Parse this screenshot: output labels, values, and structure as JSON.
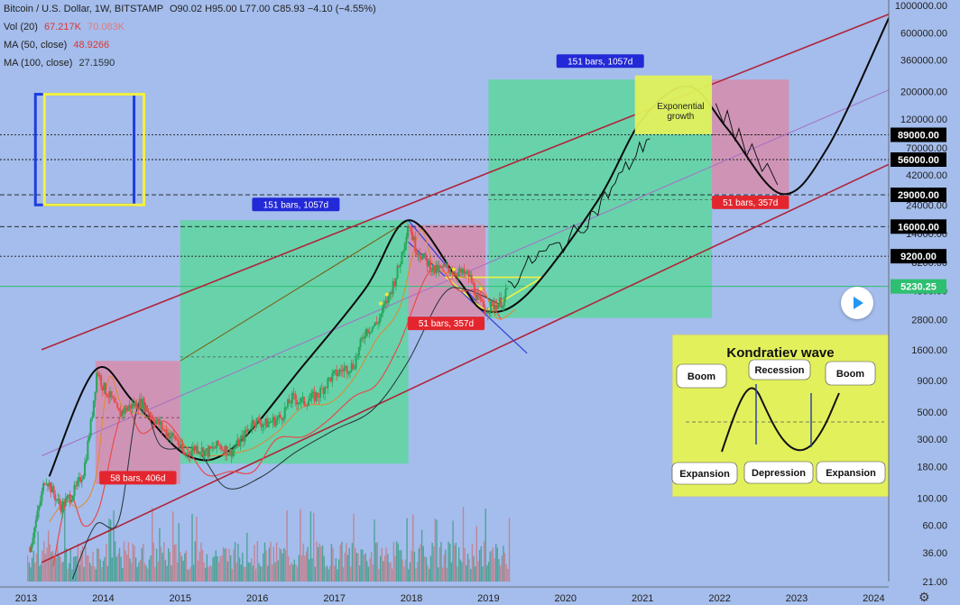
{
  "header": {
    "symbol": "Bitcoin / U.S. Dollar, 1W, BITSTAMP",
    "ohlc": "O90.02  H95.00  L77.00  C85.93  −4.10 (−4.55%)",
    "vol_label": "Vol (20)",
    "vol_value": "67.217K",
    "vol_value2": "70.083K",
    "ma50_label": "MA (50, close)",
    "ma50_value": "48.9266",
    "ma100_label": "MA (100, close)",
    "ma100_value": "27.1590"
  },
  "colors": {
    "background": "#a4bdec",
    "green_zone": "#5ed6a0",
    "red_zone": "#d98aa8",
    "candle_up": "#26a65b",
    "candle_down": "#e84b4b",
    "channel": "#b0243a",
    "label_blue": "#2229d6",
    "label_red": "#e3262e"
  },
  "chart_data": {
    "type": "candlestick",
    "title": "Bitcoin / U.S. Dollar, 1W, BITSTAMP",
    "y_scale": "log",
    "ylim": [
      21,
      1000000
    ],
    "xlim": [
      2013.0,
      2024.1
    ],
    "x_ticks": [
      "2013",
      "2014",
      "2015",
      "2016",
      "2017",
      "2018",
      "2019",
      "2020",
      "2021",
      "2022",
      "2023",
      "2024"
    ],
    "y_ticks": [
      "1000000.00",
      "600000.00",
      "360000.00",
      "200000.00",
      "120000.00",
      "70000.00",
      "42000.00",
      "24000.00",
      "14000.00",
      "8200.00",
      "4800.00",
      "2800.00",
      "1600.00",
      "900.00",
      "500.00",
      "300.00",
      "180.00",
      "100.00",
      "60.00",
      "36.00",
      "21.00"
    ],
    "price_levels": [
      {
        "value": 89000,
        "label": "89000.00",
        "style": "dotted"
      },
      {
        "value": 56000,
        "label": "56000.00",
        "style": "dotted"
      },
      {
        "value": 29000,
        "label": "29000.00",
        "style": "dashed"
      },
      {
        "value": 16000,
        "label": "16000.00",
        "style": "dashed"
      },
      {
        "value": 9200,
        "label": "9200.00",
        "style": "dotted"
      },
      {
        "value": 5230.25,
        "label": "5230.25",
        "style": "solid",
        "current": true
      }
    ],
    "price_path": [
      [
        2013.05,
        40
      ],
      [
        2013.15,
        75
      ],
      [
        2013.25,
        150
      ],
      [
        2013.35,
        110
      ],
      [
        2013.45,
        85
      ],
      [
        2013.55,
        100
      ],
      [
        2013.65,
        120
      ],
      [
        2013.75,
        170
      ],
      [
        2013.85,
        450
      ],
      [
        2013.92,
        1100
      ],
      [
        2014.0,
        800
      ],
      [
        2014.1,
        650
      ],
      [
        2014.2,
        480
      ],
      [
        2014.35,
        560
      ],
      [
        2014.5,
        600
      ],
      [
        2014.65,
        450
      ],
      [
        2014.8,
        350
      ],
      [
        2014.95,
        300
      ],
      [
        2015.05,
        220
      ],
      [
        2015.2,
        260
      ],
      [
        2015.35,
        235
      ],
      [
        2015.5,
        270
      ],
      [
        2015.65,
        235
      ],
      [
        2015.8,
        300
      ],
      [
        2015.95,
        430
      ],
      [
        2016.1,
        400
      ],
      [
        2016.3,
        450
      ],
      [
        2016.45,
        650
      ],
      [
        2016.6,
        600
      ],
      [
        2016.8,
        700
      ],
      [
        2016.95,
        950
      ],
      [
        2017.1,
        1100
      ],
      [
        2017.25,
        1200
      ],
      [
        2017.4,
        2300
      ],
      [
        2017.55,
        2600
      ],
      [
        2017.7,
        4200
      ],
      [
        2017.85,
        8000
      ],
      [
        2017.96,
        17500
      ],
      [
        2018.05,
        11000
      ],
      [
        2018.15,
        9000
      ],
      [
        2018.3,
        7000
      ],
      [
        2018.45,
        7500
      ],
      [
        2018.6,
        6800
      ],
      [
        2018.75,
        6400
      ],
      [
        2018.87,
        4000
      ],
      [
        2018.96,
        3400
      ],
      [
        2019.1,
        3800
      ],
      [
        2019.2,
        4000
      ],
      [
        2019.25,
        5230
      ]
    ],
    "volume_max_units": 340000,
    "moving_averages": [
      {
        "name": "MA (50, close)",
        "value": 48.9266,
        "color": "#e84b4b"
      },
      {
        "name": "MA (100, close)",
        "value": 27.159,
        "color": "#263238"
      }
    ],
    "zones": [
      {
        "kind": "green",
        "x": [
          2015.0,
          2017.96
        ],
        "y": [
          190,
          18000
        ]
      },
      {
        "kind": "green",
        "x": [
          2019.0,
          2021.9
        ],
        "y": [
          2900,
          250000
        ]
      },
      {
        "kind": "red",
        "x": [
          2013.9,
          2015.0
        ],
        "y": [
          130,
          1300
        ]
      },
      {
        "kind": "red",
        "x": [
          2017.96,
          2018.96
        ],
        "y": [
          3000,
          16500
        ]
      },
      {
        "kind": "red",
        "x": [
          2021.9,
          2022.9
        ],
        "y": [
          29500,
          250000
        ]
      }
    ],
    "range_labels": [
      {
        "text": "151 bars, 1057d",
        "x": 2016.5,
        "y": 24000,
        "color": "blue"
      },
      {
        "text": "151 bars, 1057d",
        "x": 2020.45,
        "y": 350000,
        "color": "blue"
      },
      {
        "text": "58 bars, 406d",
        "x": 2014.45,
        "y": 145,
        "color": "red"
      },
      {
        "text": "51 bars, 357d",
        "x": 2018.45,
        "y": 2600,
        "color": "red"
      },
      {
        "text": "51 bars, 357d",
        "x": 2022.4,
        "y": 25000,
        "color": "red"
      }
    ],
    "annotation": {
      "text_line1": "Exponential",
      "text_line2": "growth",
      "x": [
        2020.9,
        2021.9
      ],
      "y": [
        90000,
        270000
      ]
    },
    "legend_box": {
      "x": [
        2013.12,
        2014.4
      ],
      "y": [
        24000,
        190000
      ]
    }
  },
  "inset": {
    "title": "Kondratiev wave",
    "labels": {
      "boom_left": "Boom",
      "recession": "Recession",
      "boom_right": "Boom",
      "expansion_left": "Expansion",
      "depression": "Depression",
      "expansion_right": "Expansion"
    }
  }
}
